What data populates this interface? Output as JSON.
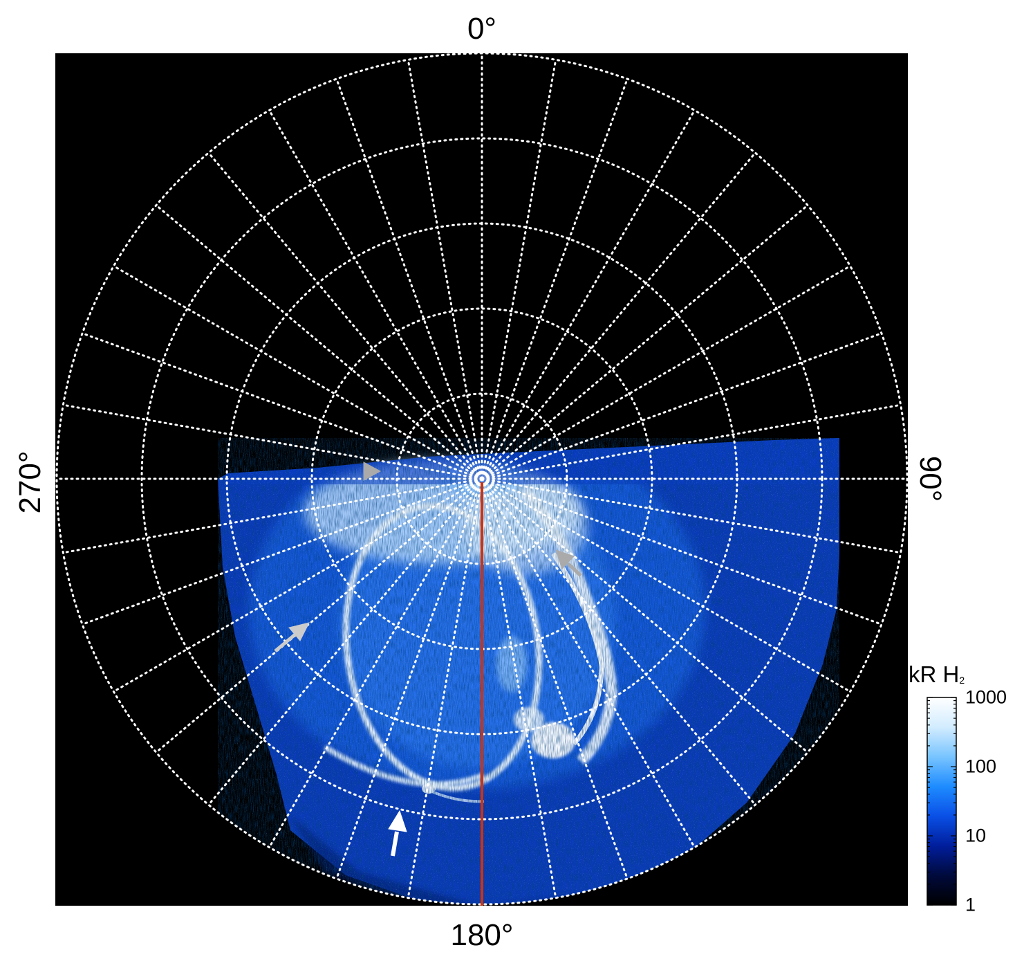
{
  "chart_data": {
    "type": "heatmap",
    "projection": "polar",
    "angle_labels": [
      {
        "text": "0°",
        "angle_deg": 0
      },
      {
        "text": "90°",
        "angle_deg": 90
      },
      {
        "text": "180°",
        "angle_deg": 180
      },
      {
        "text": "270°",
        "angle_deg": 270
      }
    ],
    "meridian_step_deg": 10,
    "parallel_count": 5,
    "grid": true,
    "grid_style": "white dotted",
    "colorbar": {
      "title": "kR H",
      "title_subscript": "2",
      "scale": "log",
      "range": [
        1,
        1000
      ],
      "ticks": [
        1,
        10,
        100,
        1000
      ],
      "tick_labels": [
        "1",
        "10",
        "100",
        "1000"
      ],
      "colormap": [
        "#000000",
        "#000a3c",
        "#001e9c",
        "#0a50e6",
        "#1e8cff",
        "#78c4ff",
        "#d2ecff",
        "#ffffff"
      ]
    },
    "highlight_line": {
      "angle_deg": 180,
      "color": "#cc3311"
    },
    "arrows": [
      {
        "color": "#aaaaaa",
        "direction": "right"
      },
      {
        "color": "#aaaaaa",
        "direction": "up-left"
      },
      {
        "color": "#cccccc",
        "direction": "up-right"
      },
      {
        "color": "#ffffff",
        "direction": "up"
      }
    ]
  },
  "colors": {
    "background": "#000000",
    "grid": "#ffffff",
    "emission_low": "#0a50e6",
    "emission_high": "#ffffff"
  }
}
